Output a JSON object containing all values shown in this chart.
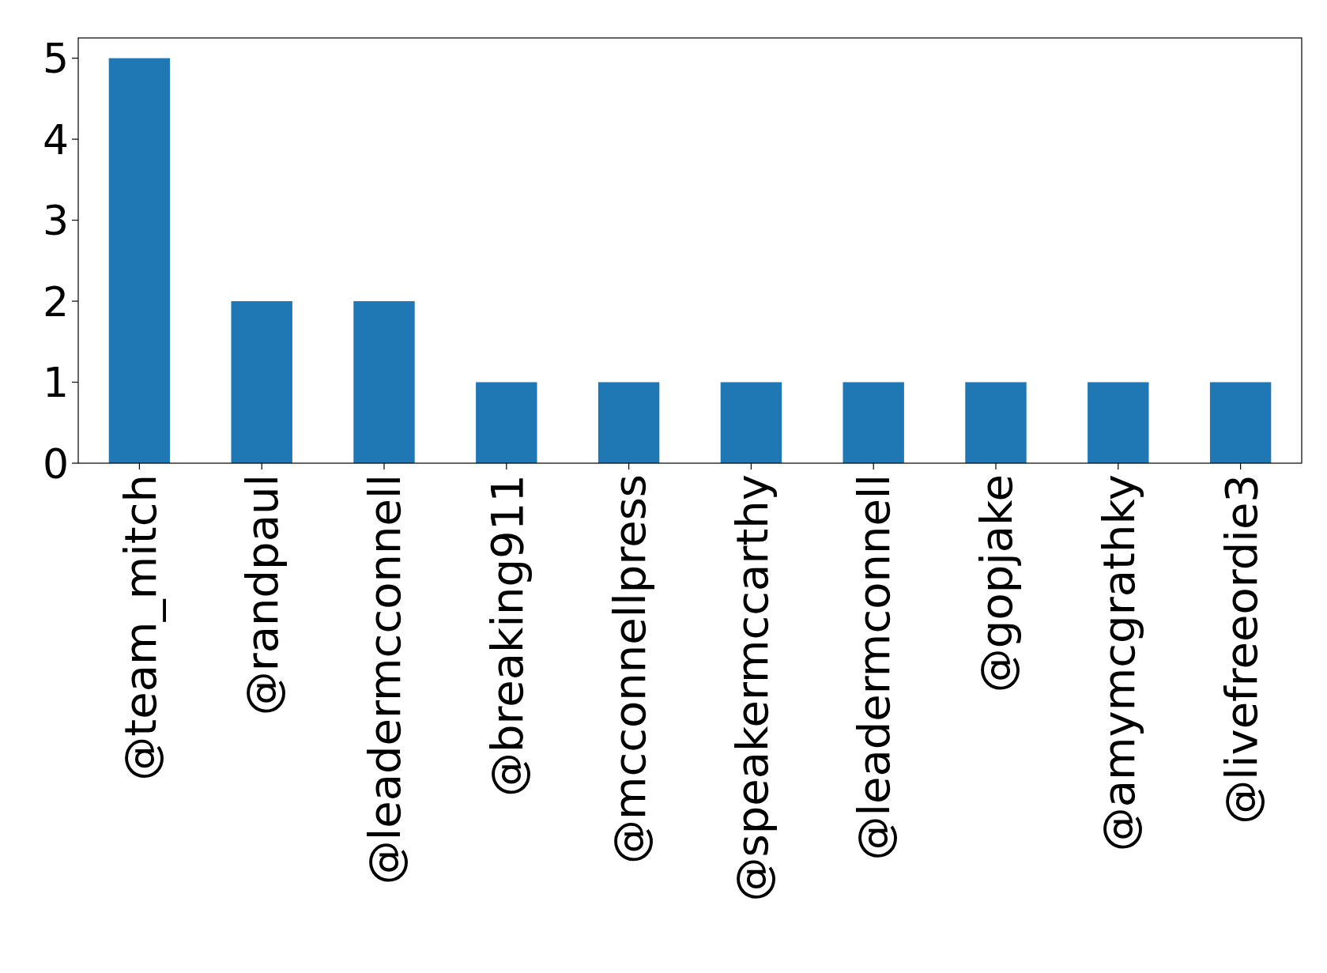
{
  "chart_data": {
    "type": "bar",
    "categories": [
      "@team_mitch",
      "@randpaul",
      "@leadermcconnell",
      "@breaking911",
      "@mcconnellpress",
      "@speakermccarthy",
      "@leadermconnell",
      "@gopjake",
      "@amymcgrathky",
      "@livefreeordie3"
    ],
    "values": [
      5,
      2,
      2,
      1,
      1,
      1,
      1,
      1,
      1,
      1
    ],
    "color": "#1f77b4",
    "ylim": [
      0,
      5.25
    ],
    "yticks": [
      0,
      1,
      2,
      3,
      4,
      5
    ],
    "grid": false
  }
}
